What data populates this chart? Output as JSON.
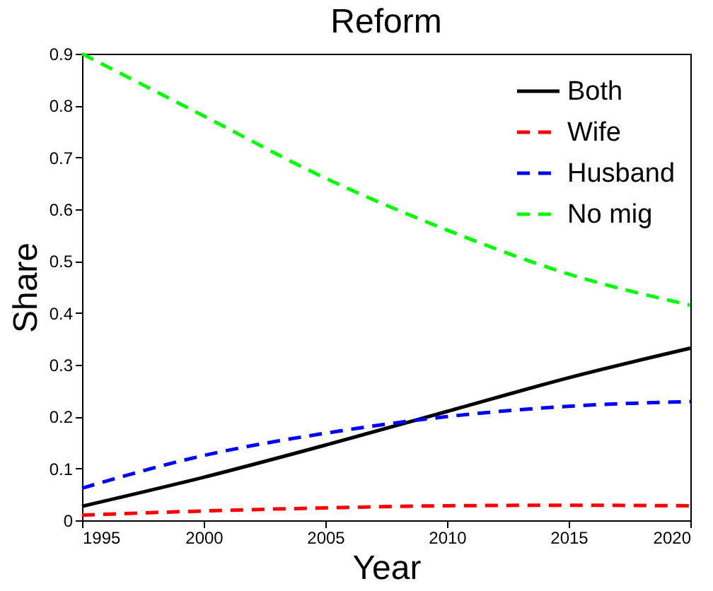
{
  "chart_data": {
    "type": "line",
    "title": "Reform",
    "xlabel": "Year",
    "ylabel": "Share",
    "x": [
      1995,
      2000,
      2005,
      2010,
      2015,
      2020
    ],
    "series": [
      {
        "name": "Both",
        "color": "#000000",
        "line_style": "solid",
        "values": [
          0.027,
          0.083,
          0.145,
          0.21,
          0.275,
          0.332
        ]
      },
      {
        "name": "Wife",
        "color": "#ff0000",
        "line_style": "dashed",
        "values": [
          0.01,
          0.018,
          0.024,
          0.028,
          0.029,
          0.028
        ]
      },
      {
        "name": "Husband",
        "color": "#0000ff",
        "line_style": "dashed",
        "values": [
          0.062,
          0.125,
          0.168,
          0.2,
          0.22,
          0.229
        ]
      },
      {
        "name": "No mig",
        "color": "#00ff00",
        "line_style": "dashed",
        "values": [
          0.9,
          0.78,
          0.66,
          0.56,
          0.475,
          0.415
        ]
      }
    ],
    "xlim": [
      1995,
      2020
    ],
    "xticks": [
      1995,
      2000,
      2005,
      2010,
      2015,
      2020
    ],
    "ylim": [
      0,
      0.9
    ],
    "yticks": [
      {
        "value": 0,
        "label": "0"
      },
      0.1,
      0.2,
      0.3,
      0.4,
      0.5,
      0.6,
      0.7,
      0.8,
      0.9
    ],
    "grid": false,
    "legend": "top right",
    "marker": "none"
  }
}
